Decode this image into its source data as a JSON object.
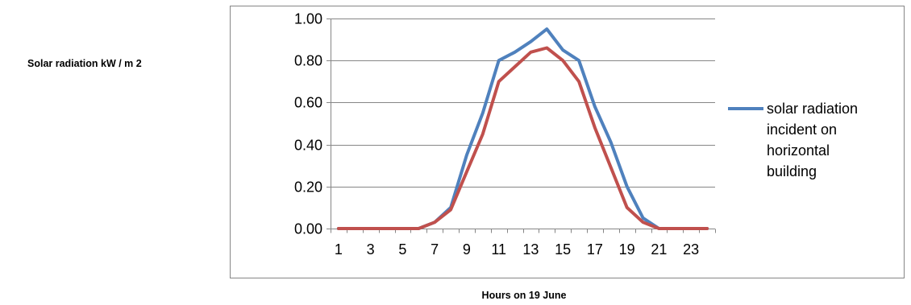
{
  "chart_data": {
    "type": "line",
    "ylabel": "Solar radiation kW / m 2",
    "xlabel": "Hours on 19 June",
    "x": [
      1,
      2,
      3,
      4,
      5,
      6,
      7,
      8,
      9,
      10,
      11,
      12,
      13,
      14,
      15,
      16,
      17,
      18,
      19,
      20,
      21,
      22,
      23,
      24
    ],
    "x_tick_labels": [
      "1",
      "3",
      "5",
      "7",
      "9",
      "11",
      "13",
      "15",
      "17",
      "19",
      "21",
      "23"
    ],
    "x_tick_values": [
      1,
      3,
      5,
      7,
      9,
      11,
      13,
      15,
      17,
      19,
      21,
      23
    ],
    "y_tick_labels": [
      "0.00",
      "0.20",
      "0.40",
      "0.60",
      "0.80",
      "1.00"
    ],
    "ylim": [
      0,
      1.0
    ],
    "grid": true,
    "legend_position": "right",
    "series": [
      {
        "name": "solar radiation incident on horizontal building",
        "legend_lines": [
          "solar radiation",
          "incident on",
          "horizontal",
          "building"
        ],
        "color": "#4F81BD",
        "values": [
          0,
          0,
          0,
          0,
          0,
          0,
          0.03,
          0.1,
          0.35,
          0.55,
          0.8,
          0.84,
          0.89,
          0.95,
          0.85,
          0.8,
          0.58,
          0.41,
          0.2,
          0.05,
          0,
          0,
          0,
          0
        ]
      },
      {
        "color": "#C0504D",
        "values": [
          0,
          0,
          0,
          0,
          0,
          0,
          0.03,
          0.09,
          0.27,
          0.45,
          0.7,
          0.77,
          0.84,
          0.86,
          0.8,
          0.7,
          0.48,
          0.29,
          0.1,
          0.03,
          0,
          0,
          0,
          0
        ]
      }
    ]
  }
}
